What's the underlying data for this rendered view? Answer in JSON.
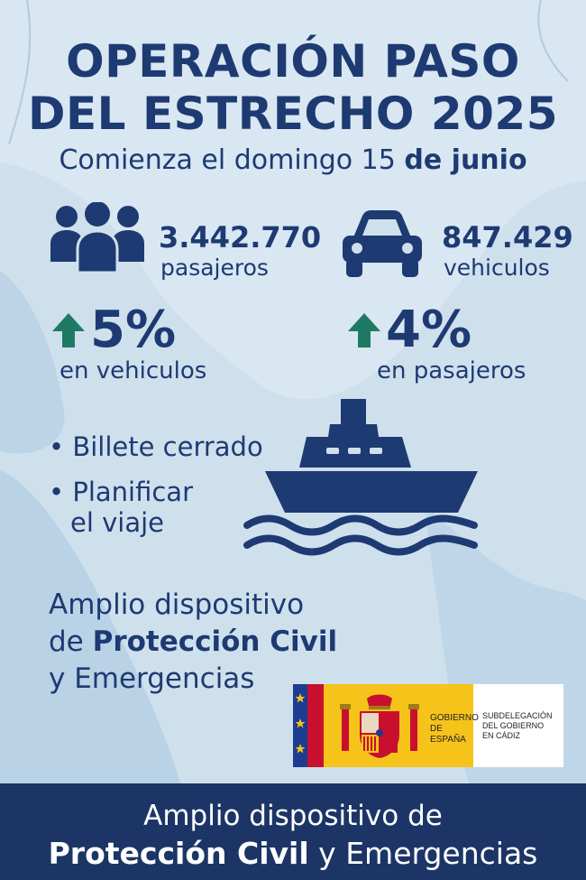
{
  "title": {
    "line1": "OPERACIÓN PASO",
    "line2": "DEL ESTRECHO 2025"
  },
  "subtitle": {
    "prefix": "Comienza el domingo 15",
    "bold": "de junio"
  },
  "stats": {
    "passengers": {
      "icon": "people-group-icon",
      "value": "3.442.770",
      "label": "pasajeros"
    },
    "vehicles": {
      "icon": "car-icon",
      "value": "847.429",
      "label": "vehiculos"
    }
  },
  "growth": {
    "vehicles": {
      "icon": "arrow-up-icon",
      "value": "5%",
      "label": "en vehiculos"
    },
    "passengers": {
      "icon": "arrow-up-icon",
      "value": "4%",
      "label": "en pasajeros"
    }
  },
  "tips": {
    "bullet": "•",
    "items": [
      "Billete cerrado",
      "Planificar",
      "el viaje"
    ]
  },
  "ferry_icon": "ship-on-waves-icon",
  "dispositivo": {
    "line1": "Amplio dispositivo",
    "line2_prefix": "de",
    "line2_bold": "Protección Civil",
    "line3": "y Emergencias"
  },
  "logo": {
    "gov_line1": "GOBIERNO",
    "gov_line2": "DE ESPAÑA",
    "sub_line1": "SUBDELEGACIÓN",
    "sub_line2": "DEL GOBIERNO",
    "sub_line3": "EN CÁDIZ"
  },
  "footer": {
    "line1": "Amplio dispositivo de",
    "line2_bold": "Protección Civil",
    "line2_rest": "y Emergencias"
  },
  "colors": {
    "navy": "#1e3a72",
    "footer": "#1c3566",
    "arrow": "#1f7a63",
    "background": "#c9dcea",
    "land": "#b5cfe3",
    "gov_yellow": "#f6c31a",
    "flag_red": "#c8102e",
    "eu_blue": "#1d3c91"
  }
}
